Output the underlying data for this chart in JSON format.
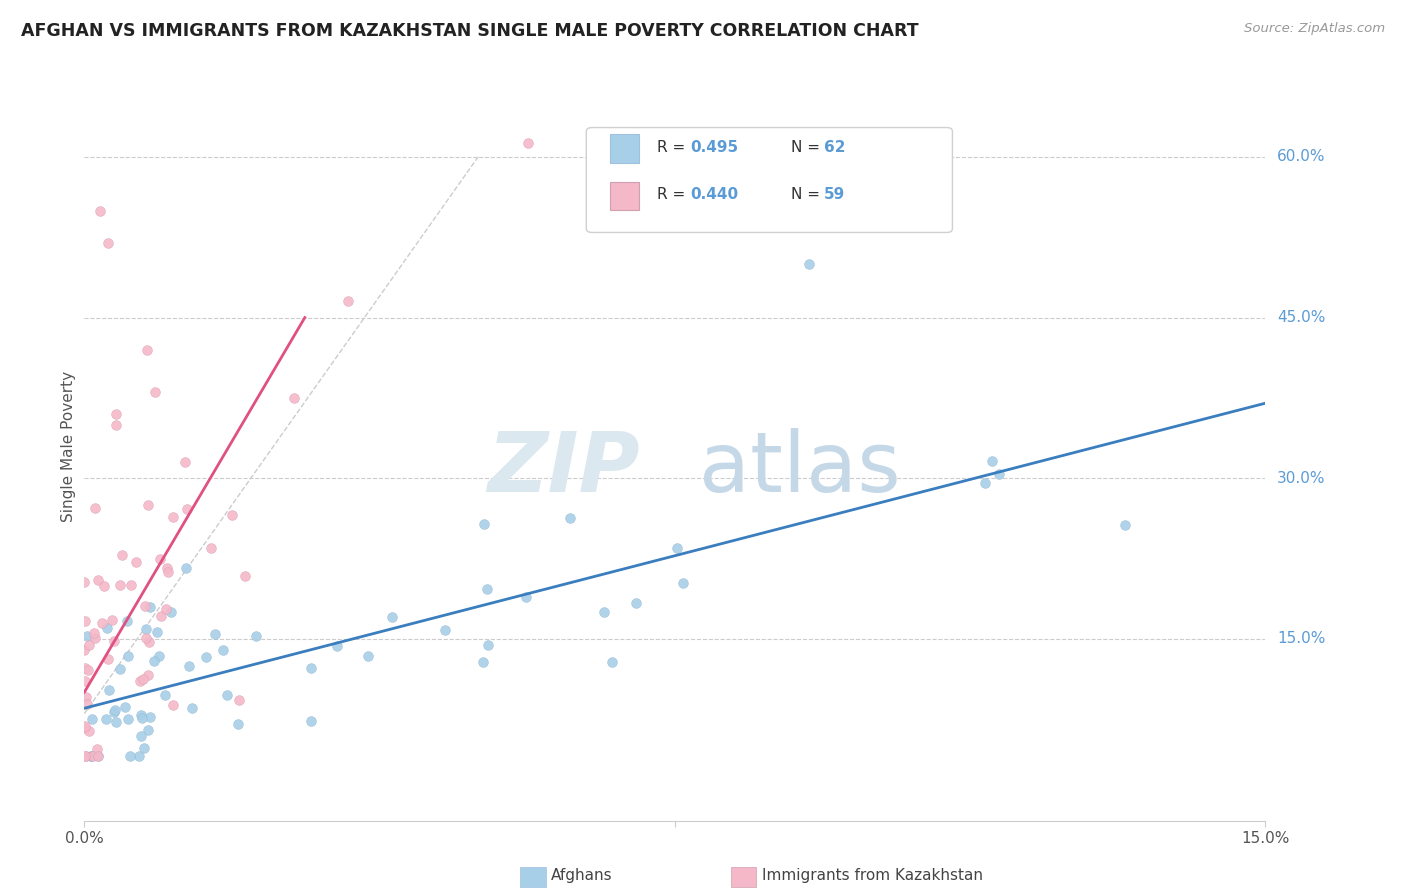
{
  "title": "AFGHAN VS IMMIGRANTS FROM KAZAKHSTAN SINGLE MALE POVERTY CORRELATION CHART",
  "source": "Source: ZipAtlas.com",
  "ylabel": "Single Male Poverty",
  "yticks_labels": [
    "15.0%",
    "30.0%",
    "45.0%",
    "60.0%"
  ],
  "ytick_vals": [
    0.15,
    0.3,
    0.45,
    0.6
  ],
  "xlim": [
    0.0,
    0.15
  ],
  "ylim": [
    -0.02,
    0.68
  ],
  "scatter_color1": "#a8cfe8",
  "scatter_color2": "#f4b8c8",
  "line_color1": "#3a7ebf",
  "line_color2": "#e05080",
  "dash_color": "#cccccc",
  "grid_color": "#cccccc",
  "ytick_color": "#5b9bd5",
  "background_color": "#ffffff",
  "legend_label1": "Afghans",
  "legend_label2": "Immigrants from Kazakhstan",
  "watermark_zip_color": "#dce8f0",
  "watermark_atlas_color": "#c5d8e8"
}
